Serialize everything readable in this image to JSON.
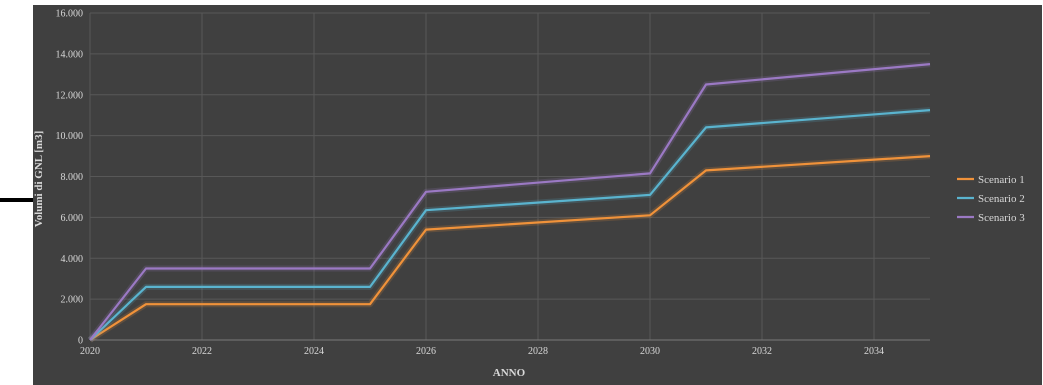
{
  "chart_data": {
    "type": "line",
    "xlabel": "ANNO",
    "ylabel": "Volumi di GNL  [m3]",
    "x": [
      2020,
      2021,
      2025,
      2026,
      2030,
      2031,
      2035
    ],
    "xlim": [
      2020,
      2035
    ],
    "ylim": [
      0,
      16000
    ],
    "xticks": [
      "2020",
      "2022",
      "2024",
      "2026",
      "2028",
      "2030",
      "2032",
      "2034"
    ],
    "yticks": [
      "0",
      "2.000",
      "4.000",
      "6.000",
      "8.000",
      "10.000",
      "12.000",
      "14.000",
      "16.000"
    ],
    "grid": true,
    "legend_position": "right",
    "series": [
      {
        "name": "Scenario 1",
        "color": "#f0923a",
        "values": [
          0,
          1750,
          1750,
          5400,
          6100,
          8300,
          9000
        ]
      },
      {
        "name": "Scenario 2",
        "color": "#5ab4cf",
        "values": [
          0,
          2600,
          2600,
          6350,
          7100,
          10400,
          11250
        ]
      },
      {
        "name": "Scenario 3",
        "color": "#9b79c4",
        "values": [
          0,
          3500,
          3500,
          7250,
          8150,
          12500,
          13500
        ]
      }
    ]
  }
}
